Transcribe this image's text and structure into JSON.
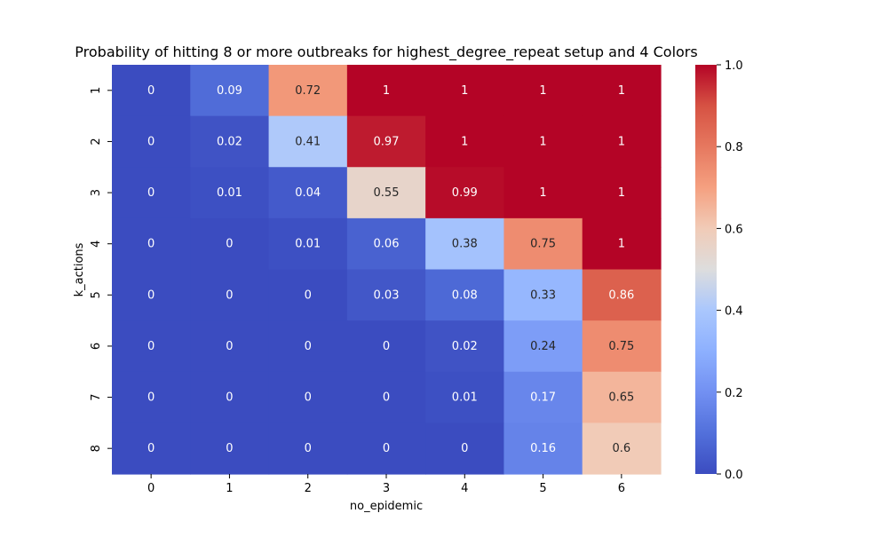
{
  "chart_data": {
    "type": "heatmap",
    "title": "Probability of hitting 8 or more outbreaks for highest_degree_repeat setup and 4 Colors",
    "xlabel": "no_epidemic",
    "ylabel": "k_actions",
    "x_categories": [
      "0",
      "1",
      "2",
      "3",
      "4",
      "5",
      "6"
    ],
    "y_categories": [
      "1",
      "2",
      "3",
      "4",
      "5",
      "6",
      "7",
      "8"
    ],
    "values": [
      [
        0,
        0.09,
        0.72,
        1,
        1,
        1,
        1
      ],
      [
        0,
        0.02,
        0.41,
        0.97,
        1,
        1,
        1
      ],
      [
        0,
        0.01,
        0.04,
        0.55,
        0.99,
        1,
        1
      ],
      [
        0,
        0,
        0.01,
        0.06,
        0.38,
        0.75,
        1
      ],
      [
        0,
        0,
        0,
        0.03,
        0.08,
        0.33,
        0.86
      ],
      [
        0,
        0,
        0,
        0,
        0.02,
        0.24,
        0.75
      ],
      [
        0,
        0,
        0,
        0,
        0.01,
        0.17,
        0.65
      ],
      [
        0,
        0,
        0,
        0,
        0,
        0.16,
        0.6
      ]
    ],
    "colormap": "coolwarm",
    "colorbar": {
      "vmin": 0,
      "vmax": 1,
      "ticks": [
        0,
        0.2,
        0.4,
        0.6,
        0.8,
        1
      ],
      "tick_labels": [
        "0.0",
        "0.2",
        "0.4",
        "0.6",
        "0.8",
        "1.0"
      ]
    },
    "annotations": true,
    "grid": false
  }
}
